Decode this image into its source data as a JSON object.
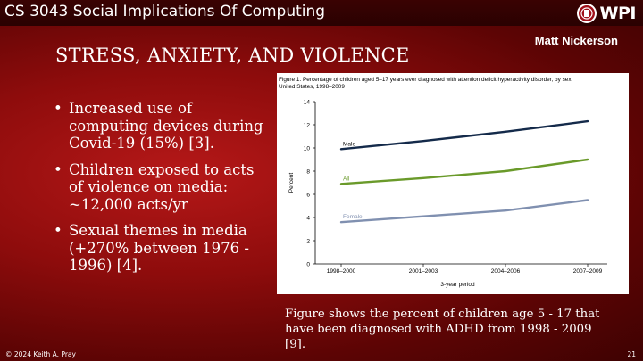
{
  "header": {
    "course": "CS 3043 Social Implications Of Computing",
    "logo_text": "WPI"
  },
  "author": "Matt Nickerson",
  "title": "STRESS, ANXIETY, AND VIOLENCE",
  "bullets": [
    "Increased use of computing devices during Covid-19 (15%) [3].",
    "Children exposed to acts of violence on media: ~12,000 acts/yr",
    "Sexual themes in media (+270% between 1976 - 1996) [4]."
  ],
  "bullet_symbol": "•",
  "caption": "Figure shows the percent of children age 5 - 17 that have been diagnosed with ADHD from 1998 - 2009 [9].",
  "footer": {
    "copyright": "© 2024 Keith A. Pray",
    "page": "21"
  },
  "chart_data": {
    "type": "line",
    "title_lines": [
      "Figure 1. Percentage of children aged 5–17 years ever diagnosed with attention deficit hyperactivity disorder, by sex:",
      "United States, 1998–2009"
    ],
    "xlabel": "3-year period",
    "ylabel": "Percent",
    "categories": [
      "1998–2000",
      "2001–2003",
      "2004–2006",
      "2007–2009"
    ],
    "ylim": [
      0,
      14
    ],
    "yticks": [
      0,
      2,
      4,
      6,
      8,
      10,
      12,
      14
    ],
    "series": [
      {
        "name": "Male",
        "values": [
          9.9,
          10.6,
          11.4,
          12.3
        ],
        "color": "#142a4a"
      },
      {
        "name": "All",
        "values": [
          6.9,
          7.4,
          8.0,
          9.0
        ],
        "color": "#6a9a2a"
      },
      {
        "name": "Female",
        "values": [
          3.6,
          4.1,
          4.6,
          5.5
        ],
        "color": "#8090b0"
      }
    ]
  },
  "colors": {
    "background": "#8e0c0c",
    "topbar": "#2e0101"
  }
}
